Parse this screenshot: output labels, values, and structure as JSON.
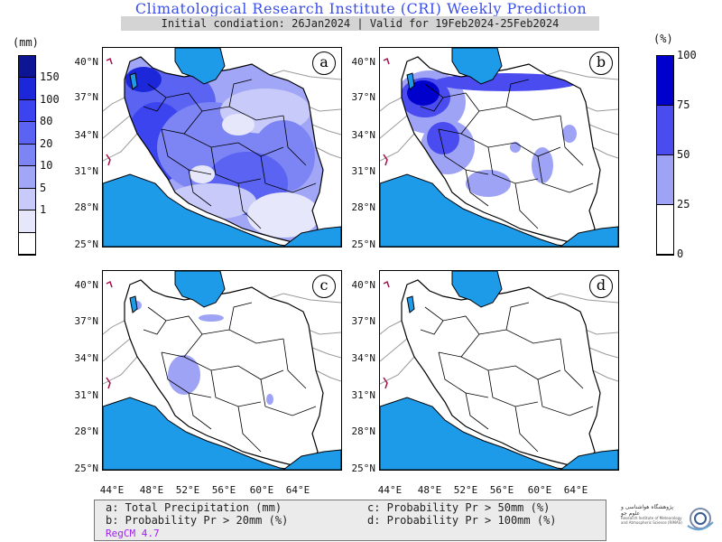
{
  "header": {
    "title": "Climatological Research Institute (CRI) Weekly Prediction",
    "subtitle": "Initial condiation: 26Jan2024 | Valid for 19Feb2024-25Feb2024"
  },
  "left_colorbar": {
    "unit": "(mm)",
    "labels": [
      "150",
      "100",
      "80",
      "20",
      "10",
      "5",
      "1"
    ],
    "colors": [
      "#0d1595",
      "#1b27d8",
      "#3b44ee",
      "#5a63f2",
      "#7d84f4",
      "#a1a6f6",
      "#c8cbf9",
      "#e6e7fb",
      "#ffffff"
    ]
  },
  "right_colorbar": {
    "unit": "(%)",
    "labels": [
      "100",
      "75",
      "50",
      "25",
      "0"
    ],
    "colors": [
      "#0000cc",
      "#4a4cf0",
      "#9fa3f5",
      "#ffffff"
    ]
  },
  "panels": [
    {
      "id": "a",
      "label": "a"
    },
    {
      "id": "b",
      "label": "b"
    },
    {
      "id": "c",
      "label": "c"
    },
    {
      "id": "d",
      "label": "d"
    }
  ],
  "axes": {
    "lat_labels": [
      "40°N",
      "37°N",
      "34°N",
      "31°N",
      "28°N",
      "25°N"
    ],
    "lon_labels": [
      "44°E",
      "48°E",
      "52°E",
      "56°E",
      "60°E",
      "64°E"
    ]
  },
  "legend": {
    "a": "a: Total Precipitation (mm)",
    "b": "b: Probability Pr > 20mm (%)",
    "c": "c: Probability Pr > 50mm (%)",
    "d": "d: Probability Pr > 100mm (%)",
    "model": "RegCM 4.7"
  },
  "logo": {
    "line1": "پژوهشگاه هواشناسی و علوم جو",
    "line2": "Research Institute of Meteorology and Atmospheric Science (RIMAS)"
  },
  "colors": {
    "water": "#1e9be8",
    "title": "#3a4ee8",
    "border": "#000000"
  }
}
